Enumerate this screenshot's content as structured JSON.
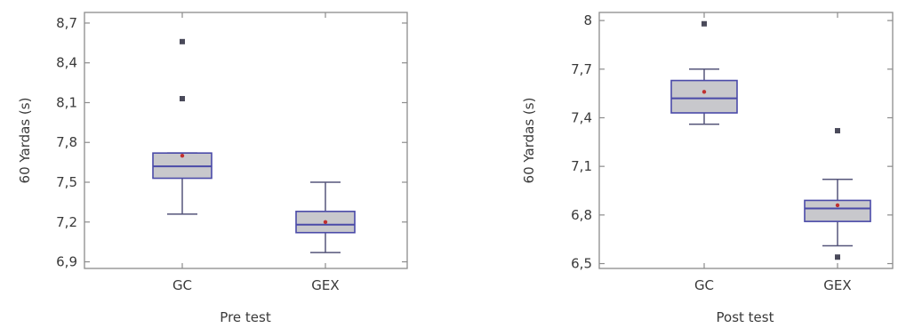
{
  "colors": {
    "box_fill": "#c8c8cc",
    "box_stroke": "#4a4aa8",
    "median": "#4a4aa8",
    "mean_marker": "#c03030",
    "outlier": "#4a4a5a",
    "frame": "#8c8c8c"
  },
  "chart_data": [
    {
      "type": "box",
      "xlabel": "Pre test",
      "ylabel": "60 Yardas (s)",
      "ylim": [
        6.85,
        8.78
      ],
      "yticks": [
        "6,9",
        "7,2",
        "7,5",
        "7,8",
        "8,1",
        "8,4",
        "8,7"
      ],
      "ytick_values": [
        6.9,
        7.2,
        7.5,
        7.8,
        8.1,
        8.4,
        8.7
      ],
      "categories": [
        "GC",
        "GEX"
      ],
      "boxes": [
        {
          "name": "GC",
          "whisker_low": 7.26,
          "q1": 7.53,
          "median": 7.62,
          "q3": 7.72,
          "whisker_high": 7.72,
          "mean": 7.7,
          "outliers": [
            8.13,
            8.56
          ]
        },
        {
          "name": "GEX",
          "whisker_low": 6.97,
          "q1": 7.12,
          "median": 7.18,
          "q3": 7.28,
          "whisker_high": 7.5,
          "mean": 7.2,
          "outliers": []
        }
      ]
    },
    {
      "type": "box",
      "xlabel": "Post test",
      "ylabel": "60 Yardas (s)",
      "ylim": [
        6.47,
        8.05
      ],
      "yticks": [
        "6,5",
        "6,8",
        "7,1",
        "7,4",
        "7,7",
        "8"
      ],
      "ytick_values": [
        6.5,
        6.8,
        7.1,
        7.4,
        7.7,
        8.0
      ],
      "categories": [
        "GC",
        "GEX"
      ],
      "boxes": [
        {
          "name": "GC",
          "whisker_low": 7.36,
          "q1": 7.43,
          "median": 7.52,
          "q3": 7.63,
          "whisker_high": 7.7,
          "mean": 7.56,
          "outliers": [
            7.98
          ]
        },
        {
          "name": "GEX",
          "whisker_low": 6.61,
          "q1": 6.76,
          "median": 6.84,
          "q3": 6.89,
          "whisker_high": 7.02,
          "mean": 6.86,
          "outliers": [
            7.32,
            6.54
          ]
        }
      ]
    }
  ]
}
